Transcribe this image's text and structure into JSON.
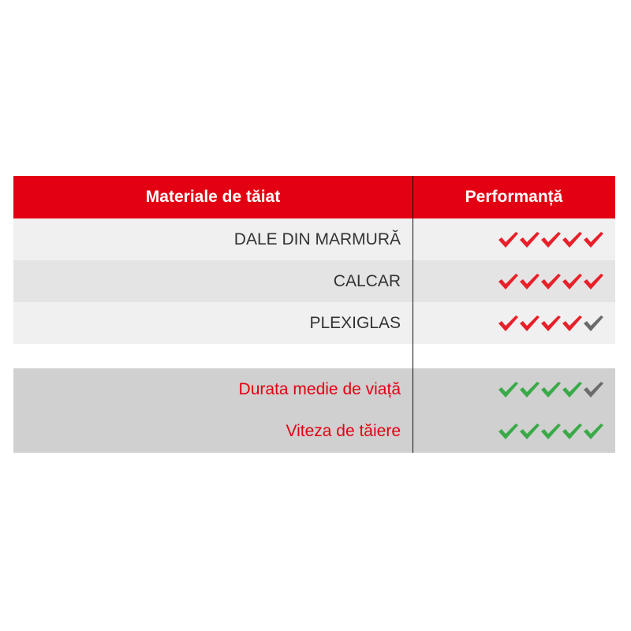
{
  "header": {
    "col1": "Materiale de tăiat",
    "col2": "Performanță"
  },
  "materials": [
    {
      "label": "DALE DIN MARMURĂ",
      "rating": 5,
      "max": 5
    },
    {
      "label": "CALCAR",
      "rating": 5,
      "max": 5
    },
    {
      "label": "PLEXIGLAS",
      "rating": 4,
      "max": 5
    }
  ],
  "metrics": [
    {
      "label": "Durata medie de viață",
      "rating": 4,
      "max": 5
    },
    {
      "label": "Viteza de tăiere",
      "rating": 5,
      "max": 5
    }
  ],
  "colors": {
    "header": "#e30012",
    "check_red": "#e8202a",
    "check_green": "#3aaa48",
    "check_off": "#6b6b6b"
  }
}
